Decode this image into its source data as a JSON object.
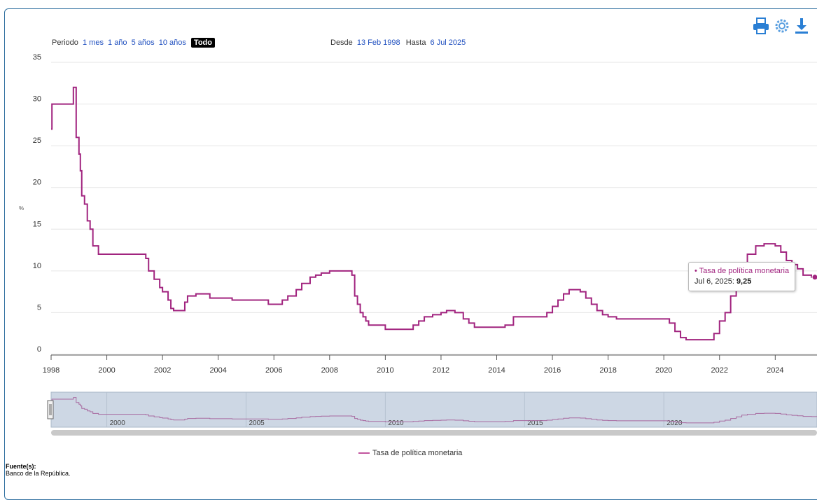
{
  "toolbar": {
    "periodo_label": "Periodo",
    "options": [
      "1 mes",
      "1 año",
      "5 años",
      "10 años"
    ],
    "selected": "Todo",
    "desde_label": "Desde",
    "desde_value": "13 Feb 1998",
    "hasta_label": "Hasta",
    "hasta_value": "6 Jul 2025"
  },
  "icons": [
    "print-icon",
    "gear-icon",
    "download-icon"
  ],
  "colors": {
    "series": "#a1247f",
    "navigator_fill": "#cdd7e4",
    "frame": "#2f6f9f"
  },
  "tooltip": {
    "series": "• Tasa de política monetaria",
    "date": "Jul 6, 2025:",
    "value": "9,25"
  },
  "legend": {
    "label": "Tasa de política monetaria"
  },
  "source": {
    "title": "Fuente(s):",
    "text": "Banco de la República."
  },
  "chart_data": {
    "type": "line",
    "ylabel": "%",
    "ylim": [
      0,
      35
    ],
    "y_ticks": [
      0,
      5,
      10,
      15,
      20,
      25,
      30,
      35
    ],
    "xlim": [
      1998,
      2025.5
    ],
    "x_ticks": [
      "1998",
      "2000",
      "2002",
      "2004",
      "2006",
      "2008",
      "2010",
      "2012",
      "2014",
      "2016",
      "2018",
      "2020",
      "2022",
      "2024"
    ],
    "navigator_ticks": [
      "2000",
      "2005",
      "2010",
      "2015",
      "2020"
    ],
    "grid": true,
    "series": [
      {
        "name": "Tasa de política monetaria",
        "x": [
          1998.0,
          1998.03,
          1998.25,
          1998.8,
          1998.9,
          1999.0,
          1999.05,
          1999.1,
          1999.2,
          1999.3,
          1999.4,
          1999.5,
          1999.7,
          1999.9,
          2000.0,
          2001.0,
          2001.4,
          2001.5,
          2001.7,
          2001.9,
          2002.0,
          2002.2,
          2002.3,
          2002.4,
          2002.6,
          2002.8,
          2002.9,
          2003.2,
          2003.5,
          2003.7,
          2004.0,
          2004.5,
          2005.0,
          2005.3,
          2005.8,
          2006.0,
          2006.3,
          2006.5,
          2006.8,
          2007.0,
          2007.3,
          2007.5,
          2007.7,
          2008.0,
          2008.5,
          2008.8,
          2008.9,
          2009.0,
          2009.1,
          2009.2,
          2009.3,
          2009.4,
          2009.6,
          2010.0,
          2010.3,
          2011.0,
          2011.2,
          2011.4,
          2011.7,
          2012.0,
          2012.2,
          2012.5,
          2012.8,
          2013.0,
          2013.2,
          2014.0,
          2014.3,
          2014.6,
          2015.0,
          2015.5,
          2015.8,
          2016.0,
          2016.2,
          2016.4,
          2016.6,
          2016.8,
          2017.0,
          2017.2,
          2017.4,
          2017.6,
          2017.8,
          2018.0,
          2018.3,
          2019.0,
          2020.0,
          2020.2,
          2020.4,
          2020.6,
          2020.8,
          2021.0,
          2021.6,
          2021.8,
          2022.0,
          2022.2,
          2022.4,
          2022.6,
          2022.8,
          2023.0,
          2023.3,
          2023.6,
          2023.9,
          2024.0,
          2024.2,
          2024.4,
          2024.6,
          2024.8,
          2025.0,
          2025.3,
          2025.5
        ],
        "values": [
          27,
          30,
          30,
          32,
          26,
          24,
          22,
          19,
          18,
          16,
          15,
          13,
          12,
          12,
          12,
          12,
          11.5,
          10,
          9,
          8,
          7.5,
          6.5,
          5.5,
          5.25,
          5.25,
          6.25,
          7,
          7.25,
          7.25,
          6.75,
          6.75,
          6.5,
          6.5,
          6.5,
          6.0,
          6.0,
          6.5,
          7,
          7.75,
          8.5,
          9.25,
          9.5,
          9.75,
          10.0,
          10.0,
          9.5,
          7,
          6,
          5,
          4.5,
          4,
          3.5,
          3.5,
          3.0,
          3.0,
          3.5,
          4.0,
          4.5,
          4.75,
          5.0,
          5.25,
          5.0,
          4.25,
          3.75,
          3.25,
          3.25,
          3.5,
          4.5,
          4.5,
          4.5,
          5.0,
          5.75,
          6.5,
          7.25,
          7.75,
          7.75,
          7.5,
          6.75,
          6.0,
          5.25,
          4.75,
          4.5,
          4.25,
          4.25,
          4.25,
          3.75,
          2.75,
          2.0,
          1.75,
          1.75,
          1.75,
          2.5,
          4.0,
          5.0,
          7.0,
          9.0,
          11.0,
          12.0,
          13.0,
          13.25,
          13.25,
          13.0,
          12.25,
          11.25,
          10.75,
          10.25,
          9.5,
          9.25,
          9.25
        ]
      }
    ]
  }
}
